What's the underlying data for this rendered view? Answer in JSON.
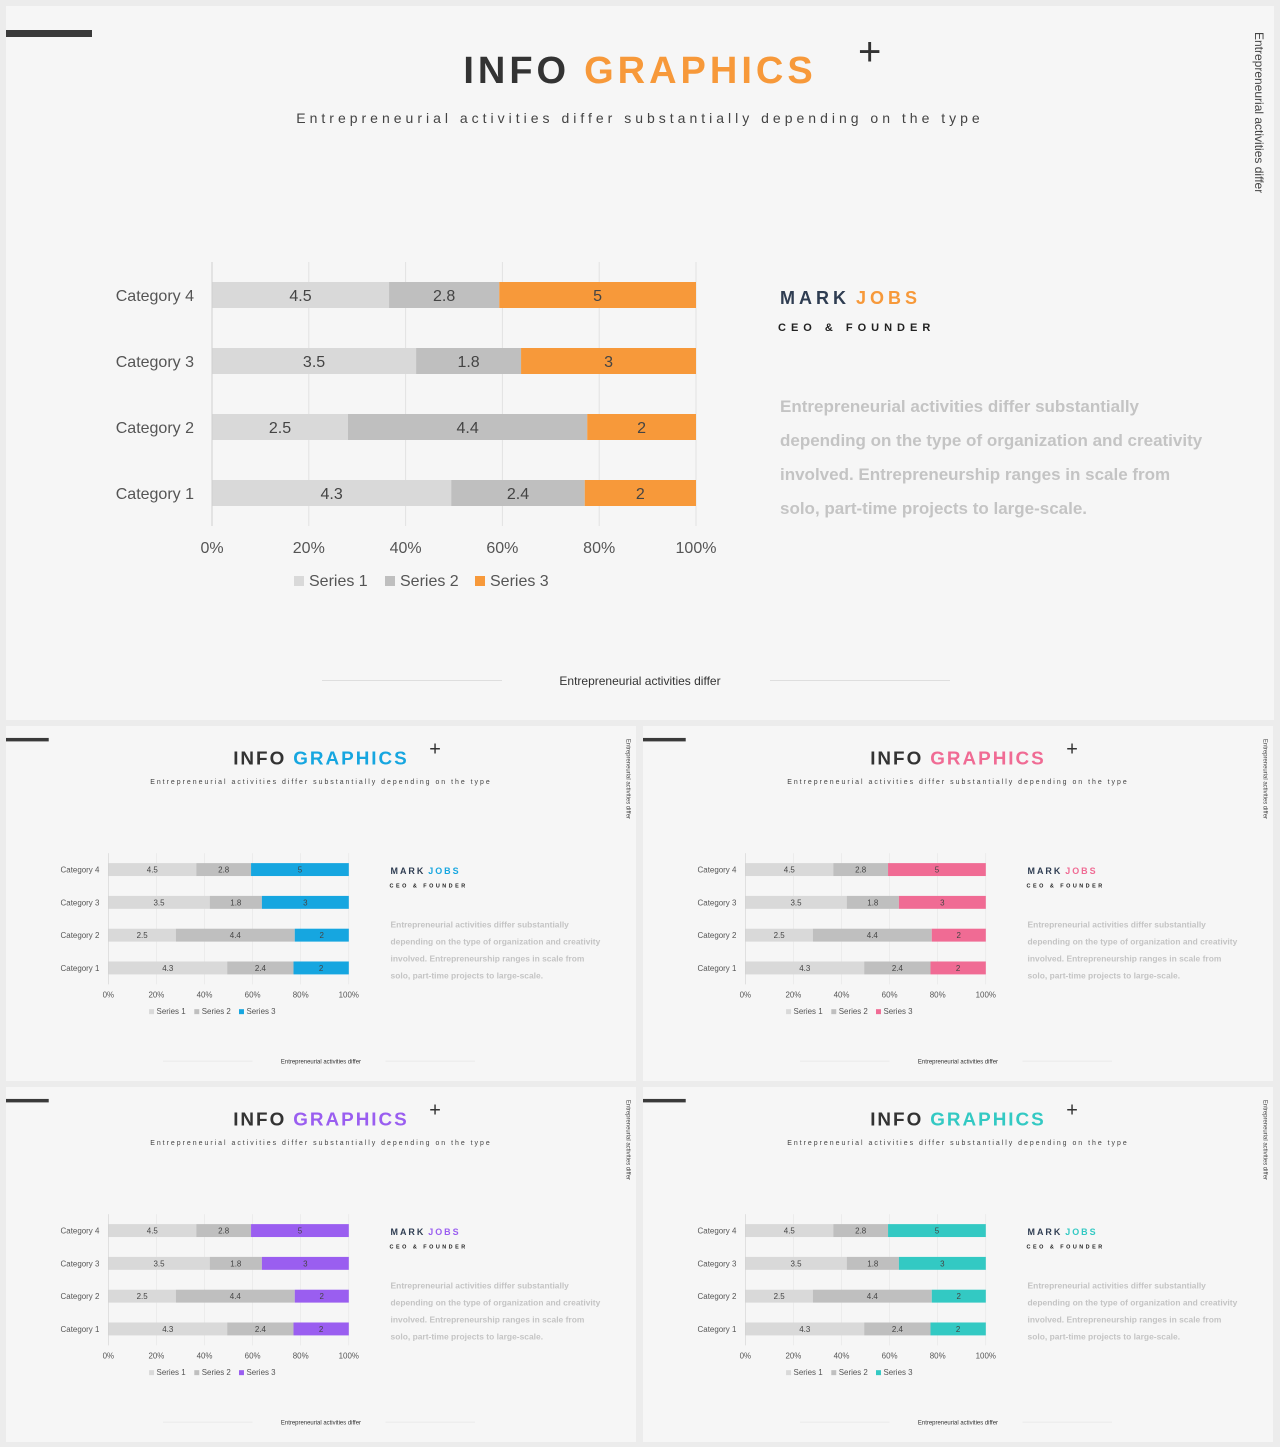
{
  "slides": [
    {
      "id": "main",
      "accent": "#f7993a"
    },
    {
      "id": "blue",
      "accent": "#16a6e0"
    },
    {
      "id": "pink",
      "accent": "#f06b94"
    },
    {
      "id": "purple",
      "accent": "#9a5ef0"
    },
    {
      "id": "teal",
      "accent": "#33c9c3"
    }
  ],
  "content": {
    "title_word1": "INFO",
    "title_word2": "GRAPHICS",
    "plus_symbol": "+",
    "subtitle": "Entrepreneurial activities differ substantially depending on the type",
    "side_text": "Entrepreneurial activities differ",
    "person_first": "MARK",
    "person_last": "JOBS",
    "role": "CEO & FOUNDER",
    "body": "Entrepreneurial activities differ substantially depending on the type of organization and creativity involved. Entrepreneurship ranges in scale from solo, part-time projects to large-scale.",
    "footer": "Entrepreneurial activities differ"
  },
  "series_colors": [
    "#d9d9d9",
    "#bfbfbf"
  ],
  "chart_data": {
    "type": "bar",
    "orientation": "horizontal",
    "stacking": "percent",
    "categories": [
      "Category 1",
      "Category 2",
      "Category 3",
      "Category 4"
    ],
    "series": [
      {
        "name": "Series 1",
        "values": [
          4.3,
          2.5,
          3.5,
          4.5
        ]
      },
      {
        "name": "Series 2",
        "values": [
          2.4,
          4.4,
          1.8,
          2.8
        ]
      },
      {
        "name": "Series 3",
        "values": [
          2,
          2,
          3,
          5
        ]
      }
    ],
    "xticks": [
      "0%",
      "20%",
      "40%",
      "60%",
      "80%",
      "100%"
    ],
    "xlim": [
      0,
      100
    ],
    "grid": true,
    "legend": "bottom"
  }
}
